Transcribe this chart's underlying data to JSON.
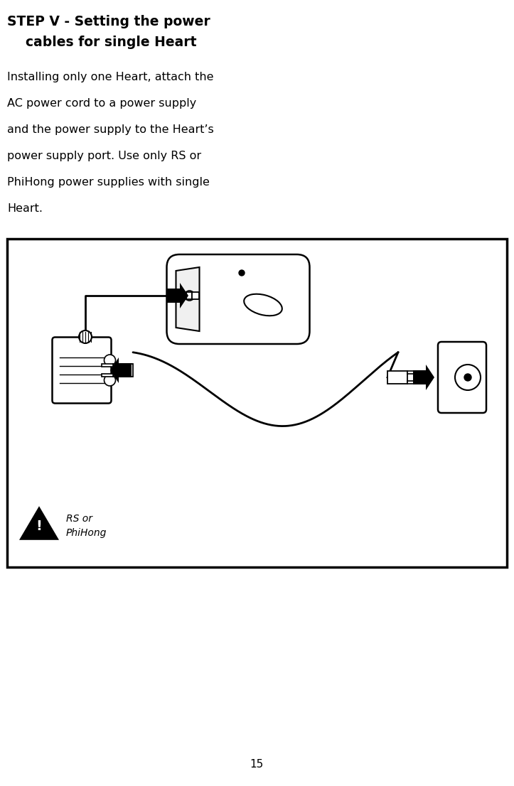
{
  "title_line1": "STEP V - Setting the power",
  "title_line2": "    cables for single Heart",
  "body_lines": [
    "Installing only one Heart, attach the",
    "AC power cord to a power supply",
    "and the power supply to the Heart’s",
    "power supply port. Use only RS or",
    "PhiHong power supplies with single",
    "Heart."
  ],
  "warning_label_line1": "RS or",
  "warning_label_line2": "PhiHong",
  "page_number": "15",
  "bg_color": "#ffffff",
  "text_color": "#000000",
  "box_border_color": "#000000",
  "title_fontsize": 13.5,
  "body_fontsize": 11.5,
  "page_num_fontsize": 11
}
